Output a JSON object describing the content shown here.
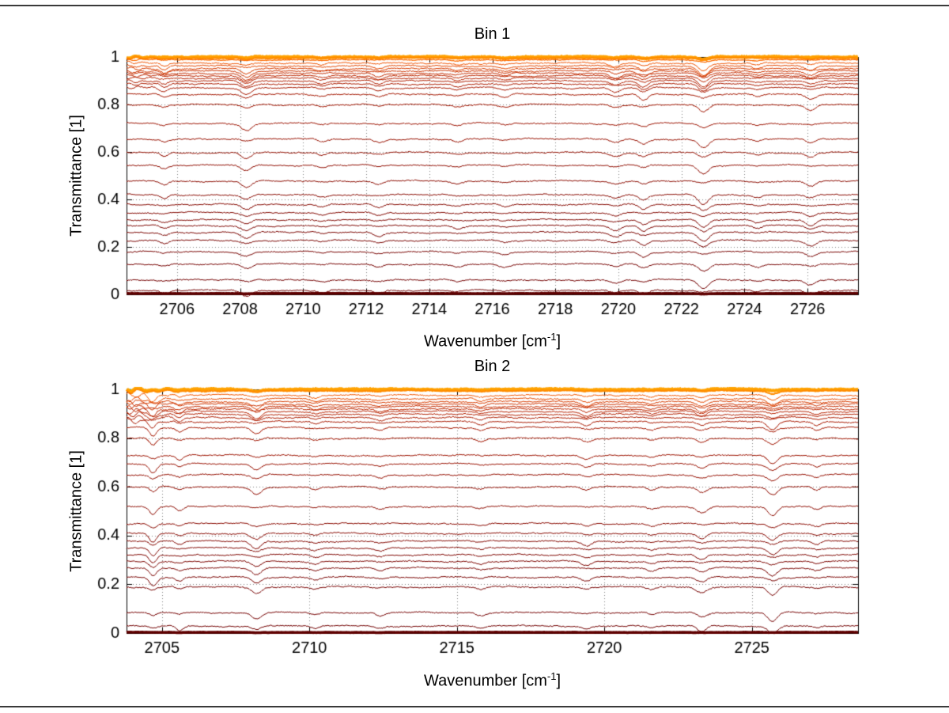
{
  "figure": {
    "background": "#ffffff",
    "axis_color": "#000000",
    "grid_color": "rgba(0,0,0,0.5)"
  },
  "chart_data": [
    {
      "type": "line",
      "title": "Bin 1",
      "xlabel": "Wavenumber [cm^-1]",
      "xlabel_parts": {
        "prefix": "Wavenumber [cm",
        "sup": "-1",
        "suffix": "]"
      },
      "ylabel": "Transmittance [1]",
      "xlim": [
        2704.4,
        2727.6
      ],
      "ylim": [
        0,
        1
      ],
      "xticks": [
        2706,
        2708,
        2710,
        2712,
        2714,
        2716,
        2718,
        2720,
        2722,
        2724,
        2726
      ],
      "xtick_labels": [
        "2706",
        "2708",
        "2710",
        "2712",
        "2714",
        "2716",
        "2718",
        "2720",
        "2722",
        "2724",
        "2726"
      ],
      "yticks": [
        0,
        0.2,
        0.4,
        0.6,
        0.8,
        1
      ],
      "ytick_labels": [
        "0",
        "0.2",
        "0.4",
        "0.6",
        "0.8",
        "1"
      ],
      "grid": true,
      "legend": "none",
      "noise": {
        "base": 0.0035,
        "left_amp": 0.006,
        "left_decay": 1.0
      },
      "dips": [
        {
          "x": 2705.6,
          "w": 0.12,
          "d": 0.012
        },
        {
          "x": 2708.2,
          "w": 0.16,
          "d": 0.02
        },
        {
          "x": 2710.6,
          "w": 0.14,
          "d": 0.008
        },
        {
          "x": 2712.4,
          "w": 0.15,
          "d": 0.01
        },
        {
          "x": 2714.9,
          "w": 0.14,
          "d": 0.008
        },
        {
          "x": 2716.4,
          "w": 0.15,
          "d": 0.01
        },
        {
          "x": 2719.9,
          "w": 0.16,
          "d": 0.014
        },
        {
          "x": 2720.8,
          "w": 0.14,
          "d": 0.018
        },
        {
          "x": 2722.7,
          "w": 0.16,
          "d": 0.028
        },
        {
          "x": 2724.4,
          "w": 0.13,
          "d": 0.008
        },
        {
          "x": 2726.1,
          "w": 0.15,
          "d": 0.016
        }
      ],
      "series": [
        {
          "level": 1.0,
          "color": "#ffa200",
          "width": 4
        },
        {
          "level": 0.996,
          "color": "#ff8c00",
          "width": 2.2
        },
        {
          "level": 0.988,
          "color": "#fb6a00",
          "width": 1.2
        },
        {
          "level": 0.974,
          "color": "#ef5400",
          "width": 1
        },
        {
          "level": 0.962,
          "color": "#e24800",
          "width": 1
        },
        {
          "level": 0.951,
          "color": "#d63d00",
          "width": 1
        },
        {
          "level": 0.941,
          "color": "#cc3400",
          "width": 1
        },
        {
          "level": 0.931,
          "color": "#c32d00",
          "width": 1
        },
        {
          "level": 0.921,
          "color": "#bc2800",
          "width": 1
        },
        {
          "level": 0.911,
          "color": "#b62300",
          "width": 1
        },
        {
          "level": 0.899,
          "color": "#b12000",
          "width": 1
        },
        {
          "level": 0.886,
          "color": "#ac1d00",
          "width": 1
        },
        {
          "level": 0.87,
          "color": "#a81a00",
          "width": 1
        },
        {
          "level": 0.843,
          "color": "#a41800",
          "width": 1
        },
        {
          "level": 0.799,
          "color": "#a01600",
          "width": 1
        },
        {
          "level": 0.72,
          "color": "#9c1400",
          "width": 1
        },
        {
          "level": 0.654,
          "color": "#981200",
          "width": 1
        },
        {
          "level": 0.597,
          "color": "#941000",
          "width": 1
        },
        {
          "level": 0.544,
          "color": "#900e00",
          "width": 1
        },
        {
          "level": 0.477,
          "color": "#8c0d00",
          "width": 1
        },
        {
          "level": 0.419,
          "color": "#890b00",
          "width": 1
        },
        {
          "level": 0.379,
          "color": "#860a00",
          "width": 1
        },
        {
          "level": 0.344,
          "color": "#830900",
          "width": 1
        },
        {
          "level": 0.314,
          "color": "#800800",
          "width": 1
        },
        {
          "level": 0.289,
          "color": "#7e0700",
          "width": 1
        },
        {
          "level": 0.261,
          "color": "#7c0600",
          "width": 1
        },
        {
          "level": 0.227,
          "color": "#7a0500",
          "width": 1
        },
        {
          "level": 0.179,
          "color": "#780400",
          "width": 1
        },
        {
          "level": 0.127,
          "color": "#760300",
          "width": 1
        },
        {
          "level": 0.061,
          "color": "#740200",
          "width": 1
        },
        {
          "level": 0.017,
          "color": "#710100",
          "width": 1
        },
        {
          "level": 0.004,
          "color": "#5f0000",
          "width": 3.5
        }
      ]
    },
    {
      "type": "line",
      "title": "Bin 2",
      "xlabel": "Wavenumber [cm^-1]",
      "xlabel_parts": {
        "prefix": "Wavenumber [cm",
        "sup": "-1",
        "suffix": "]"
      },
      "ylabel": "Transmittance [1]",
      "xlim": [
        2703.8,
        2728.6
      ],
      "ylim": [
        0,
        1
      ],
      "xticks": [
        2705,
        2710,
        2715,
        2720,
        2725
      ],
      "xtick_labels": [
        "2705",
        "2710",
        "2715",
        "2720",
        "2725"
      ],
      "yticks": [
        0,
        0.2,
        0.4,
        0.6,
        0.8,
        1
      ],
      "ytick_labels": [
        "0",
        "0.2",
        "0.4",
        "0.6",
        "0.8",
        "1"
      ],
      "grid": true,
      "legend": "none",
      "noise": {
        "base": 0.0035,
        "left_amp": 0.014,
        "left_decay": 1.1
      },
      "dips": [
        {
          "x": 2704.7,
          "w": 0.12,
          "d": 0.025
        },
        {
          "x": 2705.6,
          "w": 0.12,
          "d": 0.014
        },
        {
          "x": 2708.2,
          "w": 0.16,
          "d": 0.022
        },
        {
          "x": 2710.2,
          "w": 0.14,
          "d": 0.008
        },
        {
          "x": 2712.4,
          "w": 0.15,
          "d": 0.01
        },
        {
          "x": 2715.8,
          "w": 0.14,
          "d": 0.009
        },
        {
          "x": 2719.4,
          "w": 0.15,
          "d": 0.012
        },
        {
          "x": 2721.6,
          "w": 0.13,
          "d": 0.008
        },
        {
          "x": 2723.3,
          "w": 0.16,
          "d": 0.018
        },
        {
          "x": 2725.7,
          "w": 0.16,
          "d": 0.026
        },
        {
          "x": 2727.2,
          "w": 0.13,
          "d": 0.01
        }
      ],
      "series": [
        {
          "level": 1.0,
          "color": "#00c0c0",
          "width": 1.2,
          "dash": true
        },
        {
          "level": 1.0,
          "color": "#ffa200",
          "width": 4
        },
        {
          "level": 0.994,
          "color": "#ff8c00",
          "width": 2
        },
        {
          "level": 0.976,
          "color": "#f25800",
          "width": 1
        },
        {
          "level": 0.961,
          "color": "#e34900",
          "width": 1
        },
        {
          "level": 0.949,
          "color": "#d73d00",
          "width": 1
        },
        {
          "level": 0.939,
          "color": "#cd3400",
          "width": 1
        },
        {
          "level": 0.929,
          "color": "#c42d00",
          "width": 1
        },
        {
          "level": 0.919,
          "color": "#bd2800",
          "width": 1
        },
        {
          "level": 0.909,
          "color": "#b72300",
          "width": 1
        },
        {
          "level": 0.897,
          "color": "#b22000",
          "width": 1
        },
        {
          "level": 0.884,
          "color": "#ad1d00",
          "width": 1
        },
        {
          "level": 0.867,
          "color": "#a91a00",
          "width": 1
        },
        {
          "level": 0.843,
          "color": "#a51800",
          "width": 1
        },
        {
          "level": 0.799,
          "color": "#a11600",
          "width": 1
        },
        {
          "level": 0.729,
          "color": "#9d1400",
          "width": 1
        },
        {
          "level": 0.694,
          "color": "#991200",
          "width": 1
        },
        {
          "level": 0.649,
          "color": "#951000",
          "width": 1
        },
        {
          "level": 0.599,
          "color": "#910e00",
          "width": 1
        },
        {
          "level": 0.519,
          "color": "#8d0d00",
          "width": 1
        },
        {
          "level": 0.449,
          "color": "#8a0b00",
          "width": 1
        },
        {
          "level": 0.409,
          "color": "#870a00",
          "width": 1
        },
        {
          "level": 0.377,
          "color": "#840900",
          "width": 1
        },
        {
          "level": 0.349,
          "color": "#810800",
          "width": 1
        },
        {
          "level": 0.321,
          "color": "#7f0700",
          "width": 1
        },
        {
          "level": 0.294,
          "color": "#7d0600",
          "width": 1
        },
        {
          "level": 0.267,
          "color": "#7b0500",
          "width": 1
        },
        {
          "level": 0.229,
          "color": "#790400",
          "width": 1
        },
        {
          "level": 0.189,
          "color": "#770300",
          "width": 1
        },
        {
          "level": 0.084,
          "color": "#750200",
          "width": 1
        },
        {
          "level": 0.029,
          "color": "#720100",
          "width": 1
        },
        {
          "level": 0.003,
          "color": "#5f0000",
          "width": 3.5
        }
      ]
    }
  ]
}
